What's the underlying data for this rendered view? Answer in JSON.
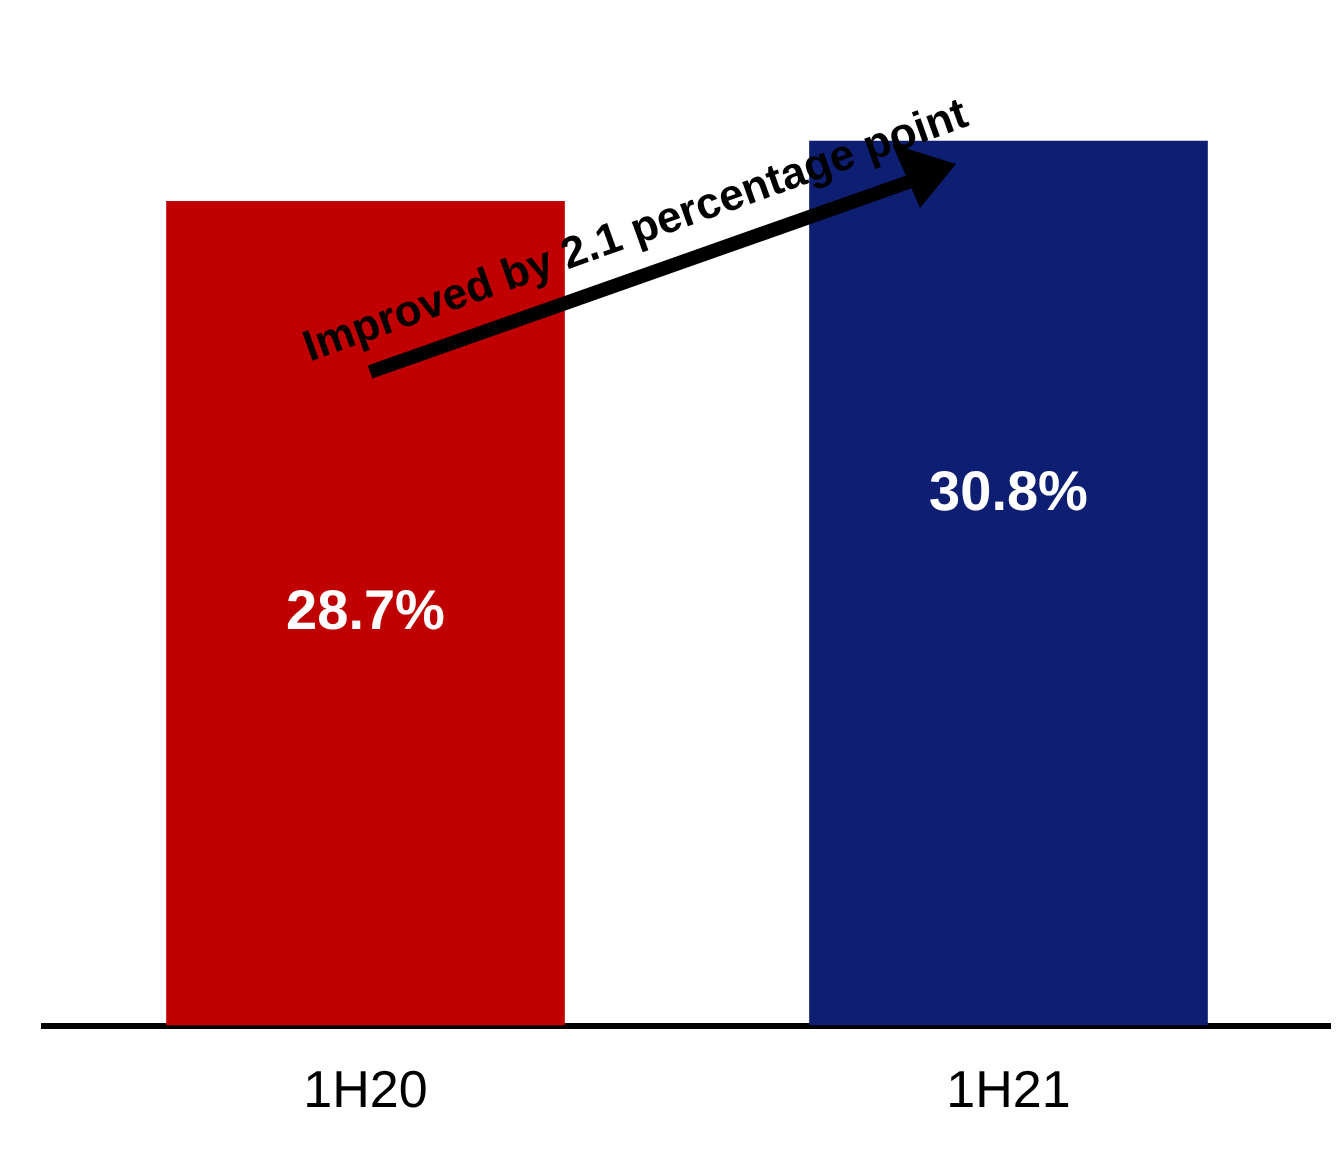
{
  "chart_data": {
    "type": "bar",
    "categories": [
      "1H20",
      "1H21"
    ],
    "values": [
      28.7,
      30.8
    ],
    "colors": [
      "#c00000",
      "#0e1f73"
    ],
    "value_labels": [
      "28.7%",
      "30.8%"
    ],
    "tick_labels": "x",
    "grid": false,
    "legend": false,
    "annotations": [
      "Improved by 2.1 percentage point"
    ]
  }
}
